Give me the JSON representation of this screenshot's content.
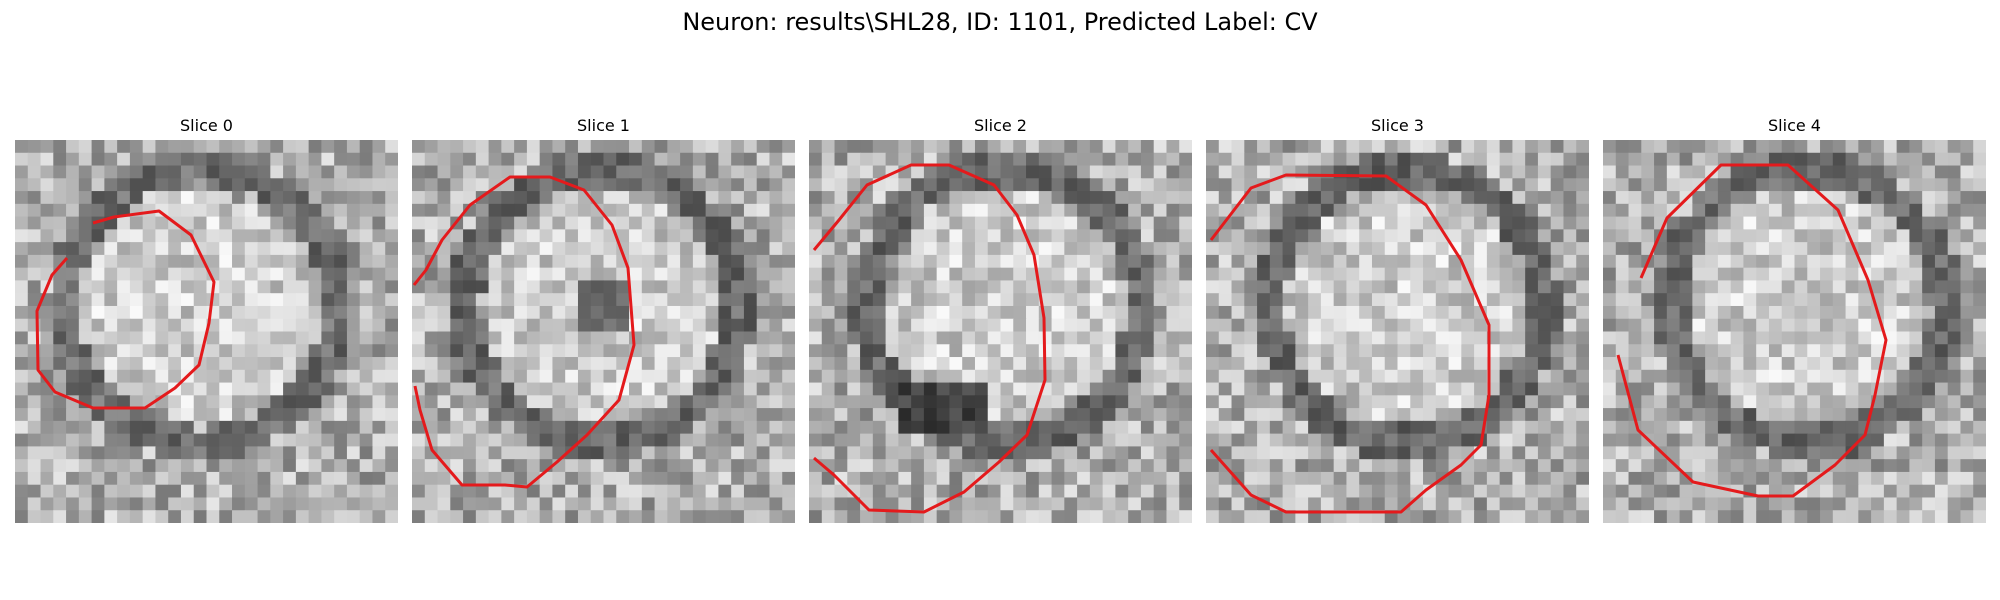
{
  "figure": {
    "title": "Neuron: results\\SHL28, ID: 1101, Predicted Label: CV",
    "contour_color": "#e41a1c",
    "panels": [
      {
        "title": "Slice 0",
        "seed": 11,
        "ring_dark": 0.45
      },
      {
        "title": "Slice 1",
        "seed": 23,
        "ring_dark": 0.55
      },
      {
        "title": "Slice 2",
        "seed": 37,
        "ring_dark": 0.55
      },
      {
        "title": "Slice 3",
        "seed": 41,
        "ring_dark": 0.6
      },
      {
        "title": "Slice 4",
        "seed": 53,
        "ring_dark": 0.5
      }
    ]
  }
}
